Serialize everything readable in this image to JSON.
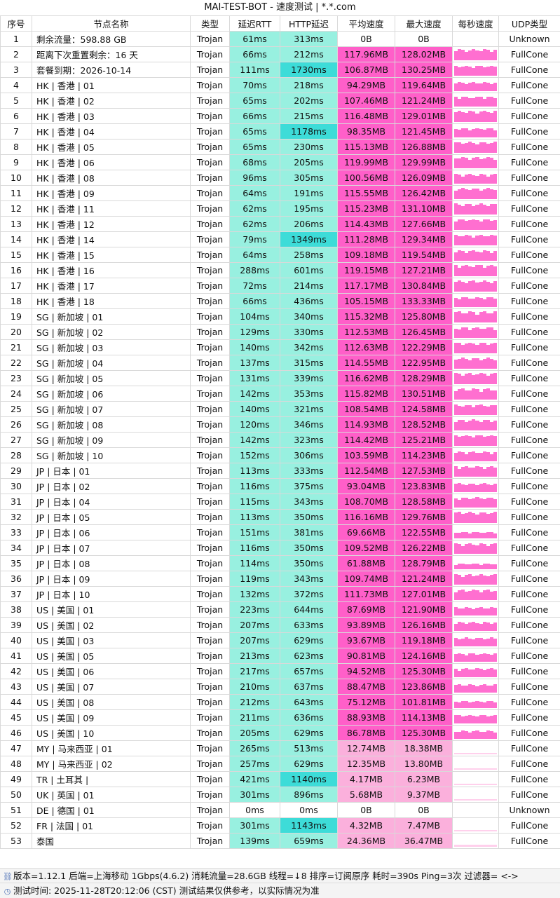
{
  "title": "MAI-TEST-BOT - 速度测试 | *.*.com",
  "colors": {
    "rtt": "#98f0e0",
    "http": "#98f0e0",
    "http_high": "#3ddcd8",
    "speed_high": "#ff5fc9",
    "speed_mid": "#fbb0dc",
    "speed_zero": "#ffffff",
    "spark": "#ff6fd0",
    "spark_faint": "#ffd0ec"
  },
  "columns": [
    "序号",
    "节点名称",
    "类型",
    "延迟RTT",
    "HTTP延迟",
    "平均速度",
    "最大速度",
    "每秒速度",
    "UDP类型"
  ],
  "rows": [
    [
      "1",
      "剩余流量：598.88 GB",
      "Trojan",
      "61ms",
      "313ms",
      "0B",
      "0B",
      "Unknown"
    ],
    [
      "2",
      "距离下次重置剩余：16 天",
      "Trojan",
      "66ms",
      "212ms",
      "117.96MB",
      "128.02MB",
      "FullCone"
    ],
    [
      "3",
      "套餐到期：2026-10-14",
      "Trojan",
      "111ms",
      "1730ms",
      "106.87MB",
      "130.25MB",
      "FullCone"
    ],
    [
      "4",
      "HK | 香港 | 01",
      "Trojan",
      "70ms",
      "218ms",
      "94.29MB",
      "119.64MB",
      "FullCone"
    ],
    [
      "5",
      "HK | 香港 | 02",
      "Trojan",
      "65ms",
      "202ms",
      "107.46MB",
      "121.24MB",
      "FullCone"
    ],
    [
      "6",
      "HK | 香港 | 03",
      "Trojan",
      "66ms",
      "215ms",
      "116.48MB",
      "129.01MB",
      "FullCone"
    ],
    [
      "7",
      "HK | 香港 | 04",
      "Trojan",
      "65ms",
      "1178ms",
      "98.35MB",
      "121.45MB",
      "FullCone"
    ],
    [
      "8",
      "HK | 香港 | 05",
      "Trojan",
      "65ms",
      "230ms",
      "115.13MB",
      "126.88MB",
      "FullCone"
    ],
    [
      "9",
      "HK | 香港 | 06",
      "Trojan",
      "68ms",
      "205ms",
      "119.99MB",
      "129.99MB",
      "FullCone"
    ],
    [
      "10",
      "HK | 香港 | 08",
      "Trojan",
      "96ms",
      "305ms",
      "100.56MB",
      "126.09MB",
      "FullCone"
    ],
    [
      "11",
      "HK | 香港 | 09",
      "Trojan",
      "64ms",
      "191ms",
      "115.55MB",
      "126.42MB",
      "FullCone"
    ],
    [
      "12",
      "HK | 香港 | 11",
      "Trojan",
      "62ms",
      "195ms",
      "115.23MB",
      "131.10MB",
      "FullCone"
    ],
    [
      "13",
      "HK | 香港 | 12",
      "Trojan",
      "62ms",
      "206ms",
      "114.43MB",
      "127.66MB",
      "FullCone"
    ],
    [
      "14",
      "HK | 香港 | 14",
      "Trojan",
      "79ms",
      "1349ms",
      "111.28MB",
      "129.34MB",
      "FullCone"
    ],
    [
      "15",
      "HK | 香港 | 15",
      "Trojan",
      "64ms",
      "258ms",
      "109.18MB",
      "119.54MB",
      "FullCone"
    ],
    [
      "16",
      "HK | 香港 | 16",
      "Trojan",
      "288ms",
      "601ms",
      "119.15MB",
      "127.21MB",
      "FullCone"
    ],
    [
      "17",
      "HK | 香港 | 17",
      "Trojan",
      "72ms",
      "214ms",
      "117.17MB",
      "130.84MB",
      "FullCone"
    ],
    [
      "18",
      "HK | 香港 | 18",
      "Trojan",
      "66ms",
      "436ms",
      "105.15MB",
      "133.33MB",
      "FullCone"
    ],
    [
      "19",
      "SG | 新加坡 | 01",
      "Trojan",
      "104ms",
      "340ms",
      "115.32MB",
      "125.80MB",
      "FullCone"
    ],
    [
      "20",
      "SG | 新加坡 | 02",
      "Trojan",
      "129ms",
      "330ms",
      "112.53MB",
      "126.45MB",
      "FullCone"
    ],
    [
      "21",
      "SG | 新加坡 | 03",
      "Trojan",
      "140ms",
      "342ms",
      "112.63MB",
      "122.29MB",
      "FullCone"
    ],
    [
      "22",
      "SG | 新加坡 | 04",
      "Trojan",
      "137ms",
      "315ms",
      "114.55MB",
      "122.95MB",
      "FullCone"
    ],
    [
      "23",
      "SG | 新加坡 | 05",
      "Trojan",
      "131ms",
      "339ms",
      "116.62MB",
      "128.29MB",
      "FullCone"
    ],
    [
      "24",
      "SG | 新加坡 | 06",
      "Trojan",
      "142ms",
      "353ms",
      "115.82MB",
      "130.51MB",
      "FullCone"
    ],
    [
      "25",
      "SG | 新加坡 | 07",
      "Trojan",
      "140ms",
      "321ms",
      "108.54MB",
      "124.58MB",
      "FullCone"
    ],
    [
      "26",
      "SG | 新加坡 | 08",
      "Trojan",
      "120ms",
      "346ms",
      "114.93MB",
      "128.52MB",
      "FullCone"
    ],
    [
      "27",
      "SG | 新加坡 | 09",
      "Trojan",
      "142ms",
      "323ms",
      "114.42MB",
      "125.21MB",
      "FullCone"
    ],
    [
      "28",
      "SG | 新加坡 | 10",
      "Trojan",
      "152ms",
      "306ms",
      "103.59MB",
      "114.23MB",
      "FullCone"
    ],
    [
      "29",
      "JP | 日本 | 01",
      "Trojan",
      "113ms",
      "333ms",
      "112.54MB",
      "127.53MB",
      "FullCone"
    ],
    [
      "30",
      "JP | 日本 | 02",
      "Trojan",
      "116ms",
      "375ms",
      "93.04MB",
      "123.83MB",
      "FullCone"
    ],
    [
      "31",
      "JP | 日本 | 04",
      "Trojan",
      "115ms",
      "343ms",
      "108.70MB",
      "128.58MB",
      "FullCone"
    ],
    [
      "32",
      "JP | 日本 | 05",
      "Trojan",
      "113ms",
      "350ms",
      "116.16MB",
      "129.76MB",
      "FullCone"
    ],
    [
      "33",
      "JP | 日本 | 06",
      "Trojan",
      "151ms",
      "381ms",
      "69.66MB",
      "122.55MB",
      "FullCone"
    ],
    [
      "34",
      "JP | 日本 | 07",
      "Trojan",
      "116ms",
      "350ms",
      "109.52MB",
      "126.22MB",
      "FullCone"
    ],
    [
      "35",
      "JP | 日本 | 08",
      "Trojan",
      "114ms",
      "350ms",
      "61.88MB",
      "128.79MB",
      "FullCone"
    ],
    [
      "36",
      "JP | 日本 | 09",
      "Trojan",
      "119ms",
      "343ms",
      "109.74MB",
      "121.24MB",
      "FullCone"
    ],
    [
      "37",
      "JP | 日本 | 10",
      "Trojan",
      "132ms",
      "372ms",
      "111.73MB",
      "127.01MB",
      "FullCone"
    ],
    [
      "38",
      "US | 美国 | 01",
      "Trojan",
      "223ms",
      "644ms",
      "87.69MB",
      "121.90MB",
      "FullCone"
    ],
    [
      "39",
      "US | 美国 | 02",
      "Trojan",
      "207ms",
      "633ms",
      "93.89MB",
      "126.16MB",
      "FullCone"
    ],
    [
      "40",
      "US | 美国 | 03",
      "Trojan",
      "207ms",
      "629ms",
      "93.67MB",
      "119.18MB",
      "FullCone"
    ],
    [
      "41",
      "US | 美国 | 05",
      "Trojan",
      "213ms",
      "623ms",
      "90.81MB",
      "124.16MB",
      "FullCone"
    ],
    [
      "42",
      "US | 美国 | 06",
      "Trojan",
      "217ms",
      "657ms",
      "94.52MB",
      "125.30MB",
      "FullCone"
    ],
    [
      "43",
      "US | 美国 | 07",
      "Trojan",
      "210ms",
      "637ms",
      "88.47MB",
      "123.86MB",
      "FullCone"
    ],
    [
      "44",
      "US | 美国 | 08",
      "Trojan",
      "212ms",
      "643ms",
      "75.12MB",
      "101.81MB",
      "FullCone"
    ],
    [
      "45",
      "US | 美国 | 09",
      "Trojan",
      "211ms",
      "636ms",
      "88.93MB",
      "114.13MB",
      "FullCone"
    ],
    [
      "46",
      "US | 美国 | 10",
      "Trojan",
      "205ms",
      "629ms",
      "86.78MB",
      "125.30MB",
      "FullCone"
    ],
    [
      "47",
      "MY | 马来西亚 | 01",
      "Trojan",
      "265ms",
      "513ms",
      "12.74MB",
      "18.38MB",
      "FullCone"
    ],
    [
      "48",
      "MY | 马来西亚 | 02",
      "Trojan",
      "257ms",
      "629ms",
      "12.35MB",
      "13.80MB",
      "FullCone"
    ],
    [
      "49",
      "TR | 土耳其 |",
      "Trojan",
      "421ms",
      "1140ms",
      "4.17MB",
      "6.23MB",
      "FullCone"
    ],
    [
      "50",
      "UK | 英国 | 01",
      "Trojan",
      "301ms",
      "896ms",
      "5.68MB",
      "9.37MB",
      "FullCone"
    ],
    [
      "51",
      "DE | 德国 | 01",
      "Trojan",
      "0ms",
      "0ms",
      "0B",
      "0B",
      "Unknown"
    ],
    [
      "52",
      "FR | 法国 | 01",
      "Trojan",
      "301ms",
      "1143ms",
      "4.32MB",
      "7.47MB",
      "FullCone"
    ],
    [
      "53",
      "泰国",
      "Trojan",
      "139ms",
      "659ms",
      "24.36MB",
      "36.47MB",
      "FullCone"
    ]
  ],
  "footer": {
    "info": "版本=1.12.1  后端=上海移动 1Gbps(4.6.2)  消耗流量=28.6GB  线程=↓8  排序=订阅原序  耗时=390s  Ping=3次  过滤器= <->",
    "time": "测试时间: 2025-11-28T20:12:06 (CST)  测试结果仅供参考，以实际情况为准"
  }
}
